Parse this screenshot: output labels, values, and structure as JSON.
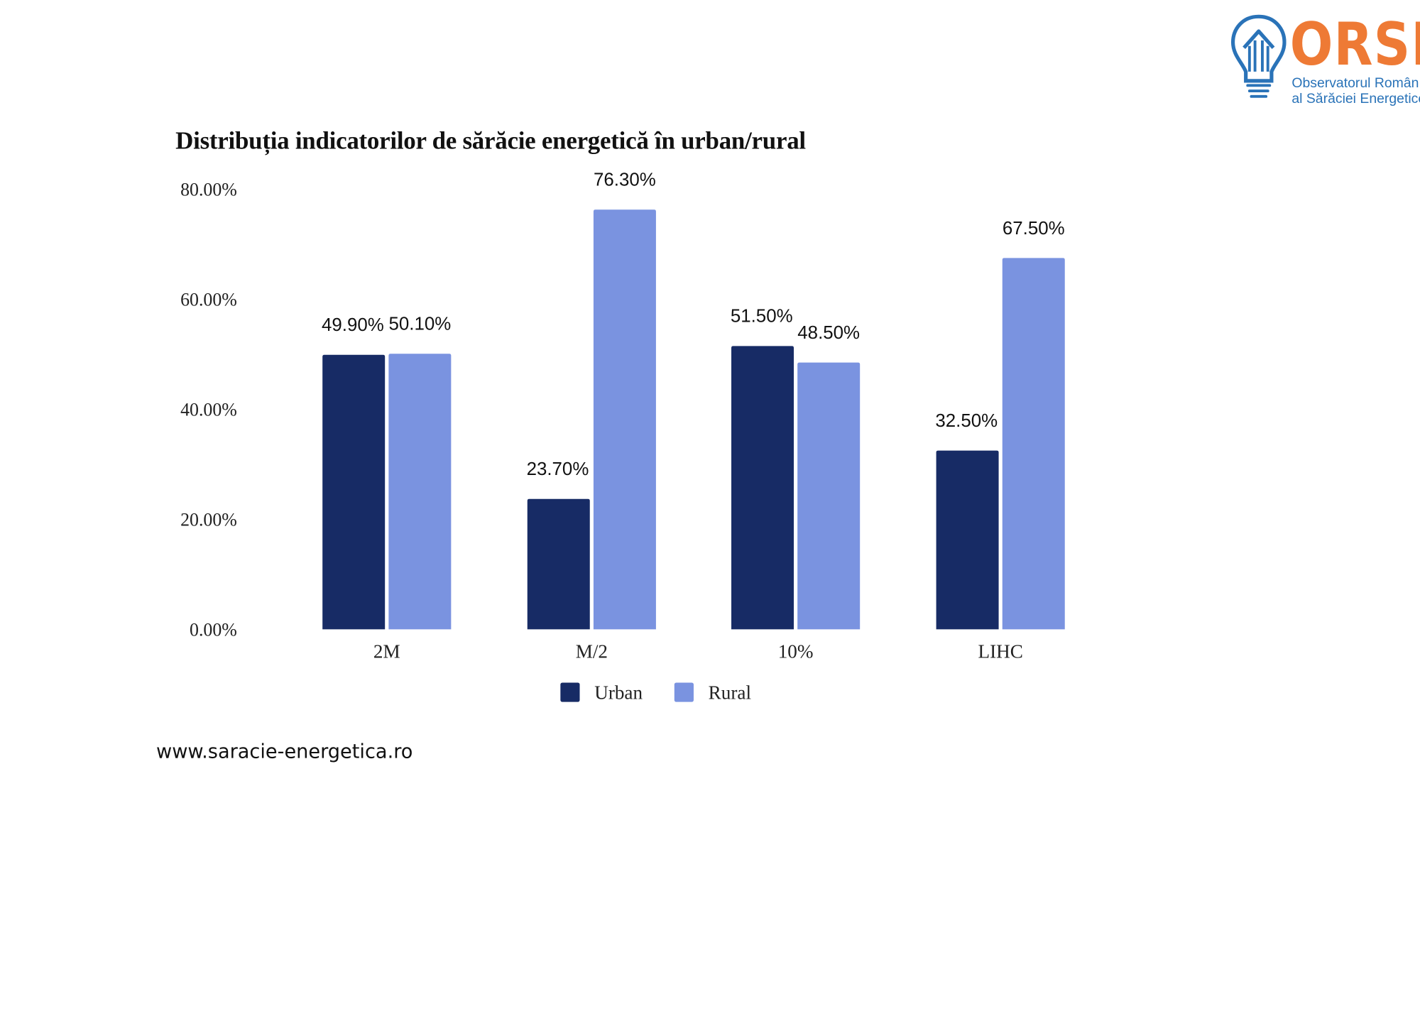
{
  "logo": {
    "name": "ORSE",
    "line1": "Observatorul Român",
    "line2": "al Sărăciei Energetice",
    "color": "#ee7a35",
    "subtitle_color": "#2a73b8",
    "icon": "lightbulb-house-icon"
  },
  "chart_data": {
    "type": "bar",
    "title": "Distribuția indicatorilor de sărăcie energetică în urban/rural",
    "categories": [
      "2M",
      "M/2",
      "10%",
      "LIHC"
    ],
    "series": [
      {
        "name": "Urban",
        "values": [
          49.9,
          23.7,
          51.5,
          32.5
        ],
        "labels": [
          "49.90%",
          "23.70%",
          "51.50%",
          "32.50%"
        ],
        "color": "#172b65"
      },
      {
        "name": "Rural",
        "values": [
          50.1,
          76.3,
          48.5,
          67.5
        ],
        "labels": [
          "50.10%",
          "76.30%",
          "48.50%",
          "67.50%"
        ],
        "color": "#7a93e0"
      }
    ],
    "yticks": [
      "0.00%",
      "20.00%",
      "40.00%",
      "60.00%",
      "80.00%"
    ],
    "ytick_values": [
      0,
      20,
      40,
      60,
      80
    ],
    "ylim": [
      0,
      80
    ],
    "xlabel": "",
    "ylabel": "",
    "grid": false,
    "legend": "bottom"
  },
  "footer": {
    "url": "www.saracie-energetica.ro"
  }
}
